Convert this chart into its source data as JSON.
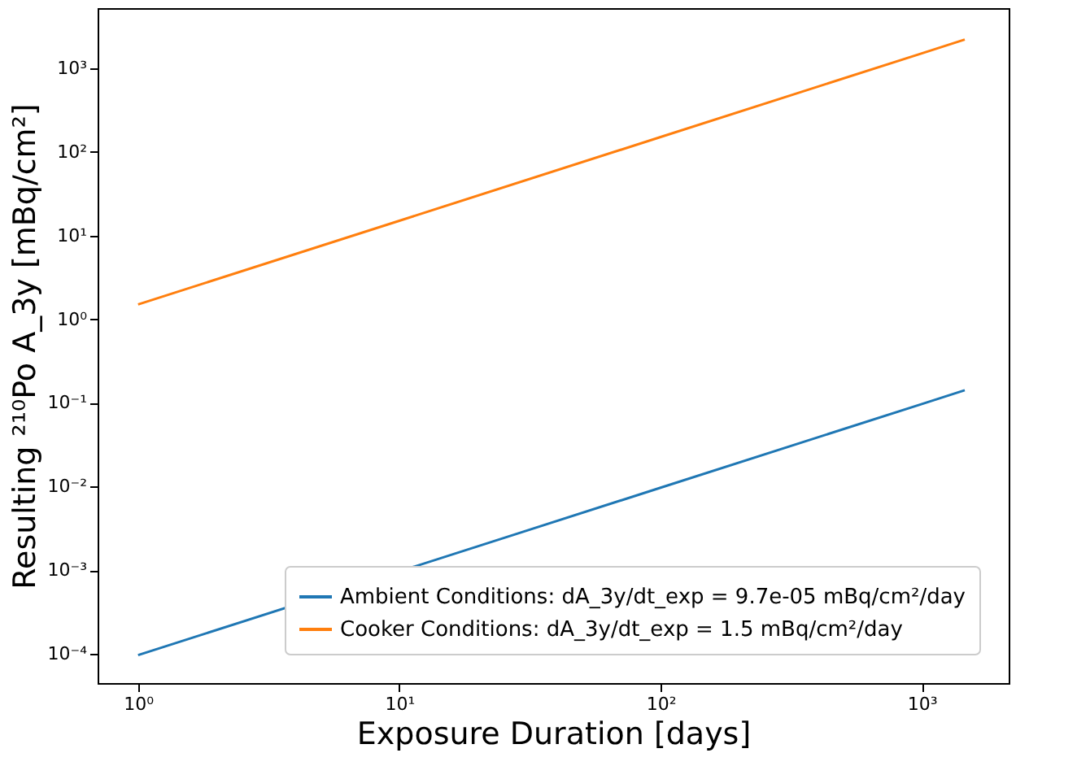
{
  "chart_data": {
    "type": "line",
    "xlabel": "Exposure Duration [days]",
    "ylabel": "Resulting ²¹⁰Po A_3y [mBq/cm²]",
    "series": [
      {
        "name": "Ambient Conditions: dA_3y/dt_exp = 9.7e-05 mBq/cm²/day",
        "color": "#1f77b4",
        "x": [
          1,
          30,
          100,
          1000,
          1460
        ],
        "values": [
          9.7e-05,
          0.00291,
          0.0097,
          0.097,
          0.1416
        ]
      },
      {
        "name": "Cooker Conditions: dA_3y/dt_exp = 1.5 mBq/cm²/day",
        "color": "#ff7f0e",
        "x": [
          1,
          10,
          100,
          1000,
          1460
        ],
        "values": [
          1.5,
          15,
          150,
          1500,
          2190
        ]
      }
    ],
    "log": "xy",
    "xlim": [
      0.7,
      2150
    ],
    "ylim": [
      4.5e-05,
      5200
    ],
    "xticks": [
      {
        "value": 1,
        "label": "10⁰"
      },
      {
        "value": 10,
        "label": "10¹"
      },
      {
        "value": 100,
        "label": "10²"
      },
      {
        "value": 1000,
        "label": "10³"
      }
    ],
    "yticks": [
      {
        "value": 0.0001,
        "label": "10⁻⁴"
      },
      {
        "value": 0.001,
        "label": "10⁻³"
      },
      {
        "value": 0.01,
        "label": "10⁻²"
      },
      {
        "value": 0.1,
        "label": "10⁻¹"
      },
      {
        "value": 1,
        "label": "10⁰"
      },
      {
        "value": 10,
        "label": "10¹"
      },
      {
        "value": 100,
        "label": "10²"
      },
      {
        "value": 1000,
        "label": "10³"
      }
    ],
    "grid": false,
    "legend": "bottom right",
    "marker": "none",
    "line_style": "solid"
  }
}
